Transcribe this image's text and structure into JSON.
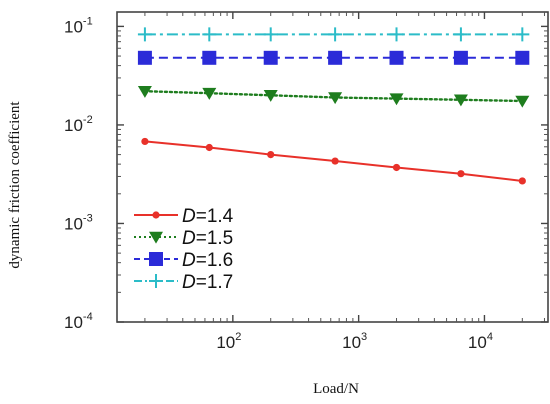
{
  "chart_data": {
    "type": "line",
    "xlabel": "Load/N",
    "ylabel": "dynamic friction coefficient",
    "x_scale": "log",
    "y_scale": "log",
    "xlim": [
      12,
      32000
    ],
    "ylim": [
      0.0001,
      0.14
    ],
    "grid": false,
    "legend_position": "bottom-left",
    "x_ticks": [
      {
        "base": "10",
        "exp": "2",
        "value": 100
      },
      {
        "base": "10",
        "exp": "3",
        "value": 1000
      },
      {
        "base": "10",
        "exp": "4",
        "value": 10000
      }
    ],
    "y_ticks": [
      {
        "base": "10",
        "exp": "-1",
        "value": 0.1
      },
      {
        "base": "10",
        "exp": "-2",
        "value": 0.01
      },
      {
        "base": "10",
        "exp": "-3",
        "value": 0.001
      },
      {
        "base": "10",
        "exp": "-4",
        "value": 0.0001
      }
    ],
    "x": [
      20,
      65,
      200,
      650,
      2000,
      6500,
      20000
    ],
    "series": [
      {
        "var": "D",
        "name": "=1.4",
        "color": "#e8312a",
        "marker": "circle",
        "line": "solid",
        "values": [
          0.0068,
          0.0059,
          0.005,
          0.0043,
          0.0037,
          0.0032,
          0.0027
        ]
      },
      {
        "var": "D",
        "name": "=1.5",
        "color": "#1e7d1e",
        "marker": "triangle-down",
        "line": "dotted",
        "values": [
          0.022,
          0.021,
          0.02,
          0.019,
          0.0185,
          0.018,
          0.0175
        ]
      },
      {
        "var": "D",
        "name": "=1.6",
        "color": "#2b2bd8",
        "marker": "square",
        "line": "dashed",
        "values": [
          0.048,
          0.048,
          0.048,
          0.048,
          0.048,
          0.048,
          0.048
        ]
      },
      {
        "var": "D",
        "name": "=1.7",
        "color": "#2bbcc8",
        "marker": "plus",
        "line": "dashdot",
        "values": [
          0.083,
          0.083,
          0.083,
          0.083,
          0.083,
          0.083,
          0.083
        ]
      }
    ]
  }
}
